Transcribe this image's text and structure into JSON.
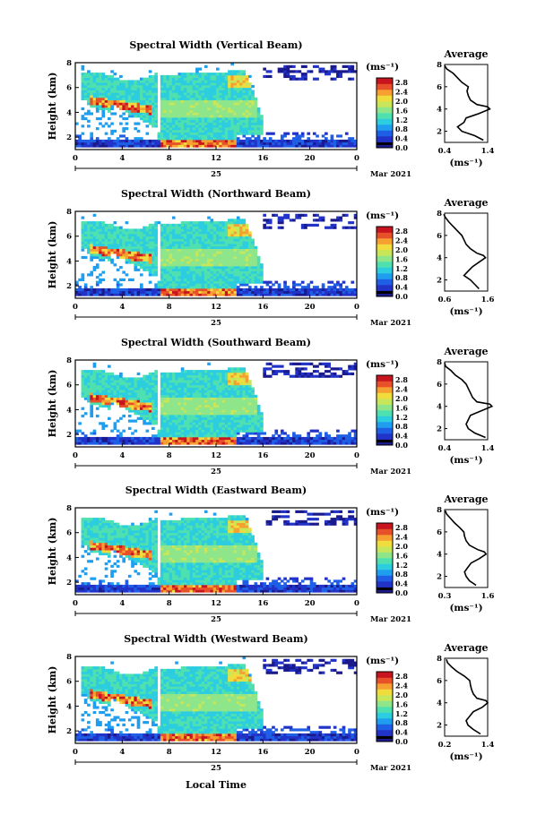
{
  "figure": {
    "local_time_label": "Local Time",
    "colorbar_unit": "(ms⁻¹)",
    "month_label": "Mar 2021",
    "day_label": "25"
  },
  "colors": {
    "colormap": [
      "#1a1a8c",
      "#2233c8",
      "#1f5fe6",
      "#1f9ef0",
      "#2dcde0",
      "#4fe0b0",
      "#8fe68a",
      "#c8e65a",
      "#f0dc3c",
      "#f5a030",
      "#e8502a",
      "#c8141e"
    ]
  },
  "chart_data": [
    {
      "type": "heatmap",
      "title": "Spectral Width (Vertical Beam)",
      "ylabel": "Height (km)",
      "xlim": [
        0,
        24
      ],
      "xticks": [
        "0",
        "4",
        "8",
        "12",
        "16",
        "20",
        "0"
      ],
      "ylim": [
        1,
        8
      ],
      "yticks": [
        "2",
        "4",
        "6",
        "8"
      ],
      "colorbar": {
        "ticks": [
          "0.0",
          "0.4",
          "0.8",
          "1.2",
          "1.6",
          "2.0",
          "2.4",
          "2.8"
        ],
        "range": [
          0,
          3.0
        ]
      },
      "average": {
        "title": "Average",
        "xlabel": "(ms⁻¹)",
        "xticks": [
          "0.4",
          "1.4"
        ],
        "xlim": [
          0.4,
          1.4
        ],
        "heights": [
          1.2,
          1.6,
          2.0,
          2.4,
          2.8,
          3.2,
          3.6,
          4.0,
          4.2,
          4.4,
          4.8,
          5.2,
          5.6,
          6.0,
          6.4,
          6.8,
          7.2,
          7.6,
          7.9
        ],
        "values": [
          1.3,
          1.1,
          0.8,
          0.7,
          0.85,
          0.9,
          1.2,
          1.45,
          1.4,
          1.15,
          1.0,
          0.95,
          0.92,
          0.95,
          0.8,
          0.7,
          0.6,
          0.45,
          0.4
        ]
      }
    },
    {
      "type": "heatmap",
      "title": "Spectral Width (Northward Beam)",
      "ylabel": "Height (km)",
      "xlim": [
        0,
        24
      ],
      "xticks": [
        "0",
        "4",
        "8",
        "12",
        "16",
        "20",
        "0"
      ],
      "ylim": [
        1,
        8
      ],
      "yticks": [
        "2",
        "4",
        "6",
        "8"
      ],
      "colorbar": {
        "ticks": [
          "0.0",
          "0.4",
          "0.8",
          "1.2",
          "1.6",
          "2.0",
          "2.4",
          "2.8"
        ],
        "range": [
          0,
          3.0
        ]
      },
      "average": {
        "title": "Average",
        "xlabel": "(ms⁻¹)",
        "xticks": [
          "0.6",
          "1.6"
        ],
        "xlim": [
          0.6,
          1.6
        ],
        "heights": [
          1.2,
          1.6,
          2.0,
          2.4,
          2.8,
          3.2,
          3.6,
          4.0,
          4.2,
          4.4,
          4.8,
          5.2,
          5.6,
          6.0,
          6.4,
          6.8,
          7.2,
          7.6,
          7.9
        ],
        "values": [
          1.4,
          1.3,
          1.2,
          1.05,
          1.15,
          1.25,
          1.4,
          1.55,
          1.5,
          1.35,
          1.2,
          1.1,
          1.05,
          1.0,
          0.9,
          0.8,
          0.7,
          0.62,
          0.58
        ]
      }
    },
    {
      "type": "heatmap",
      "title": "Spectral Width (Southward Beam)",
      "ylabel": "Height (km)",
      "xlim": [
        0,
        24
      ],
      "xticks": [
        "0",
        "4",
        "8",
        "12",
        "16",
        "20",
        "0"
      ],
      "ylim": [
        1,
        8
      ],
      "yticks": [
        "2",
        "4",
        "6",
        "8"
      ],
      "colorbar": {
        "ticks": [
          "0.0",
          "0.4",
          "0.8",
          "1.2",
          "1.6",
          "2.0",
          "2.4",
          "2.8"
        ],
        "range": [
          0,
          3.0
        ]
      },
      "average": {
        "title": "Average",
        "xlabel": "(ms⁻¹)",
        "xticks": [
          "0.4",
          "1.4"
        ],
        "xlim": [
          0.4,
          1.4
        ],
        "heights": [
          1.2,
          1.6,
          2.0,
          2.4,
          2.8,
          3.2,
          3.6,
          4.0,
          4.2,
          4.4,
          4.8,
          5.2,
          5.6,
          6.0,
          6.4,
          6.8,
          7.2,
          7.6,
          7.9
        ],
        "values": [
          1.35,
          1.1,
          0.95,
          0.9,
          0.95,
          1.0,
          1.25,
          1.5,
          1.45,
          1.15,
          1.05,
          1.0,
          0.95,
          0.9,
          0.8,
          0.65,
          0.55,
          0.42,
          0.4
        ]
      }
    },
    {
      "type": "heatmap",
      "title": "Spectral Width (Eastward Beam)",
      "ylabel": "Height (km)",
      "xlim": [
        0,
        24
      ],
      "xticks": [
        "0",
        "4",
        "8",
        "12",
        "16",
        "20",
        "0"
      ],
      "ylim": [
        1,
        8
      ],
      "yticks": [
        "2",
        "4",
        "6",
        "8"
      ],
      "colorbar": {
        "ticks": [
          "0.0",
          "0.4",
          "0.8",
          "1.2",
          "1.6",
          "2.0",
          "2.4",
          "2.8"
        ],
        "range": [
          0,
          3.0
        ]
      },
      "average": {
        "title": "Average",
        "xlabel": "(ms⁻¹)",
        "xticks": [
          "0.3",
          "1.6"
        ],
        "xlim": [
          0.3,
          1.6
        ],
        "heights": [
          1.2,
          1.6,
          2.0,
          2.4,
          2.8,
          3.2,
          3.6,
          4.0,
          4.2,
          4.4,
          4.8,
          5.2,
          5.6,
          6.0,
          6.4,
          6.8,
          7.2,
          7.6,
          7.9
        ],
        "values": [
          1.25,
          1.05,
          0.95,
          0.9,
          1.0,
          1.1,
          1.35,
          1.55,
          1.5,
          1.3,
          1.05,
          0.95,
          0.9,
          0.88,
          0.75,
          0.6,
          0.48,
          0.36,
          0.32
        ]
      }
    },
    {
      "type": "heatmap",
      "title": "Spectral Width (Westward Beam)",
      "ylabel": "Height (km)",
      "xlim": [
        0,
        24
      ],
      "xticks": [
        "0",
        "4",
        "8",
        "12",
        "16",
        "20",
        "0"
      ],
      "ylim": [
        1,
        8
      ],
      "yticks": [
        "2",
        "4",
        "6",
        "8"
      ],
      "colorbar": {
        "ticks": [
          "0.0",
          "0.4",
          "0.8",
          "1.2",
          "1.6",
          "2.0",
          "2.4",
          "2.8"
        ],
        "range": [
          0,
          3.0
        ]
      },
      "average": {
        "title": "Average",
        "xlabel": "(ms⁻¹)",
        "xticks": [
          "0.2",
          "1.4"
        ],
        "xlim": [
          0.2,
          1.4
        ],
        "heights": [
          1.2,
          1.6,
          2.0,
          2.4,
          2.8,
          3.2,
          3.6,
          4.0,
          4.2,
          4.4,
          4.8,
          5.2,
          5.6,
          6.0,
          6.4,
          6.8,
          7.2,
          7.6,
          7.9
        ],
        "values": [
          1.2,
          1.0,
          0.85,
          0.8,
          0.9,
          1.0,
          1.25,
          1.4,
          1.35,
          1.1,
          1.0,
          0.95,
          0.92,
          0.9,
          0.75,
          0.55,
          0.4,
          0.28,
          0.25
        ]
      }
    }
  ]
}
